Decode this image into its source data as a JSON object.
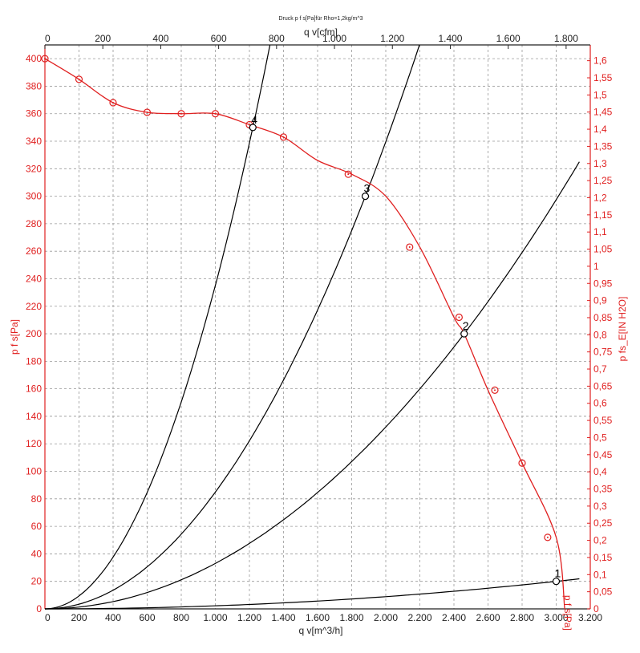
{
  "chart_data": {
    "type": "line",
    "title": "Druck p f s[Pa]für Rho=1,2kg/m^3",
    "xlabel": "q v[m^3/h]",
    "x2label": "q v[cfm]",
    "ylabel": "p f s[Pa]",
    "y2label": "p fs_E[IN H2O]",
    "xlim": [
      0,
      3200
    ],
    "ylim": [
      0,
      410
    ],
    "x_ticks": [
      "0",
      "200",
      "400",
      "600",
      "800",
      "1.000",
      "1.200",
      "1.400",
      "1.600",
      "1.800",
      "2.000",
      "2.200",
      "2.400",
      "2.600",
      "2.800",
      "3.000",
      "3.200"
    ],
    "x2_ticks": [
      "0",
      "200",
      "400",
      "600",
      "800",
      "1.000",
      "1.200",
      "1.400",
      "1.600",
      "1.800"
    ],
    "y_ticks": [
      "0",
      "20",
      "40",
      "60",
      "80",
      "100",
      "120",
      "140",
      "160",
      "180",
      "200",
      "220",
      "240",
      "260",
      "280",
      "300",
      "320",
      "340",
      "360",
      "380",
      "400"
    ],
    "y2_ticks": [
      "0",
      "0,05",
      "0,1",
      "0,15",
      "0,2",
      "0,25",
      "0,3",
      "0,35",
      "0,4",
      "0,45",
      "0,5",
      "0,55",
      "0,6",
      "0,65",
      "0,7",
      "0,75",
      "0,8",
      "0,85",
      "0,9",
      "0,95",
      "1",
      "1,05",
      "1,1",
      "1,15",
      "1,2",
      "1,25",
      "1,3",
      "1,35",
      "1,4",
      "1,45",
      "1,5",
      "1,55",
      "1,6"
    ],
    "grid": true,
    "colors": {
      "fan_curve": "#e02020",
      "system_curves": "#000000",
      "grid": "#999999"
    },
    "series": [
      {
        "name": "p f s[Pa]",
        "color": "#e02020",
        "x": [
          0,
          200,
          400,
          600,
          800,
          1000,
          1200,
          1400,
          1600,
          1800,
          2000,
          2200,
          2400,
          2460,
          2600,
          2800,
          3000,
          3050
        ],
        "y": [
          400,
          385,
          368,
          361,
          360,
          360,
          352,
          343,
          326,
          316,
          300,
          263,
          212,
          200,
          159,
          106,
          52,
          0
        ],
        "markers_x": [
          0,
          200,
          400,
          600,
          800,
          1000,
          1200,
          1400,
          1780,
          2140,
          2430,
          2640,
          2800,
          2950
        ],
        "markers_y": [
          400,
          385,
          368,
          361,
          360,
          360,
          352,
          343,
          316,
          263,
          212,
          159,
          106,
          52
        ]
      },
      {
        "name": "",
        "color": "#000000",
        "points": [
          {
            "x": 1220,
            "y": 350
          },
          {
            "x": 1880,
            "y": 300
          },
          {
            "x": 2460,
            "y": 200
          },
          {
            "x": 3000,
            "y": 20
          }
        ]
      }
    ],
    "operating_points": [
      {
        "label": "4",
        "x": 1220,
        "y": 350
      },
      {
        "label": "3",
        "x": 1880,
        "y": 300
      },
      {
        "label": "2",
        "x": 2460,
        "y": 200
      },
      {
        "label": "1",
        "x": 3000,
        "y": 20
      }
    ]
  }
}
